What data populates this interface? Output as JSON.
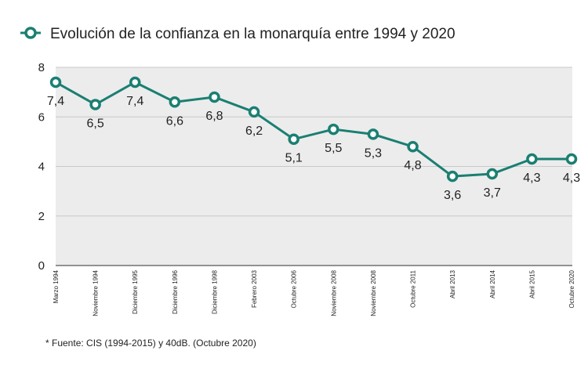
{
  "chart_data": {
    "type": "line",
    "title": "Evolución de la confianza en la monarquía entre 1994 y 2020",
    "categories": [
      "Marzo 1994",
      "Noviembre 1994",
      "Diciembre 1995",
      "Diciembre 1996",
      "Diciembre 1998",
      "Febrero 2003",
      "Octubre 2006",
      "Noviembre 2008",
      "Noviembre 2008",
      "Octubre 2011",
      "Abril 2013",
      "Abril 2014",
      "Abril 2015",
      "Octubre 2020"
    ],
    "series": [
      {
        "name": "Evolución de la confianza en la monarquía entre 1994 y 2020",
        "values": [
          7.4,
          6.5,
          7.4,
          6.6,
          6.8,
          6.2,
          5.1,
          5.5,
          5.3,
          4.8,
          3.6,
          3.7,
          4.3,
          4.3
        ],
        "labels": [
          "7,4",
          "6,5",
          "7,4",
          "6,6",
          "6,8",
          "6,2",
          "5,1",
          "5,5",
          "5,3",
          "4,8",
          "3,6",
          "3,7",
          "4,3",
          "4,3"
        ],
        "color": "#1a7f72"
      }
    ],
    "yticks": [
      "0",
      "2",
      "4",
      "6",
      "8"
    ],
    "ylim": [
      0,
      8
    ],
    "grid": true,
    "xlabel": "",
    "ylabel": "",
    "legend": "top-left",
    "plot_background": "#ececec",
    "note": "* Fuente: CIS (1994-2015) y 40dB. (Octubre 2020)"
  }
}
